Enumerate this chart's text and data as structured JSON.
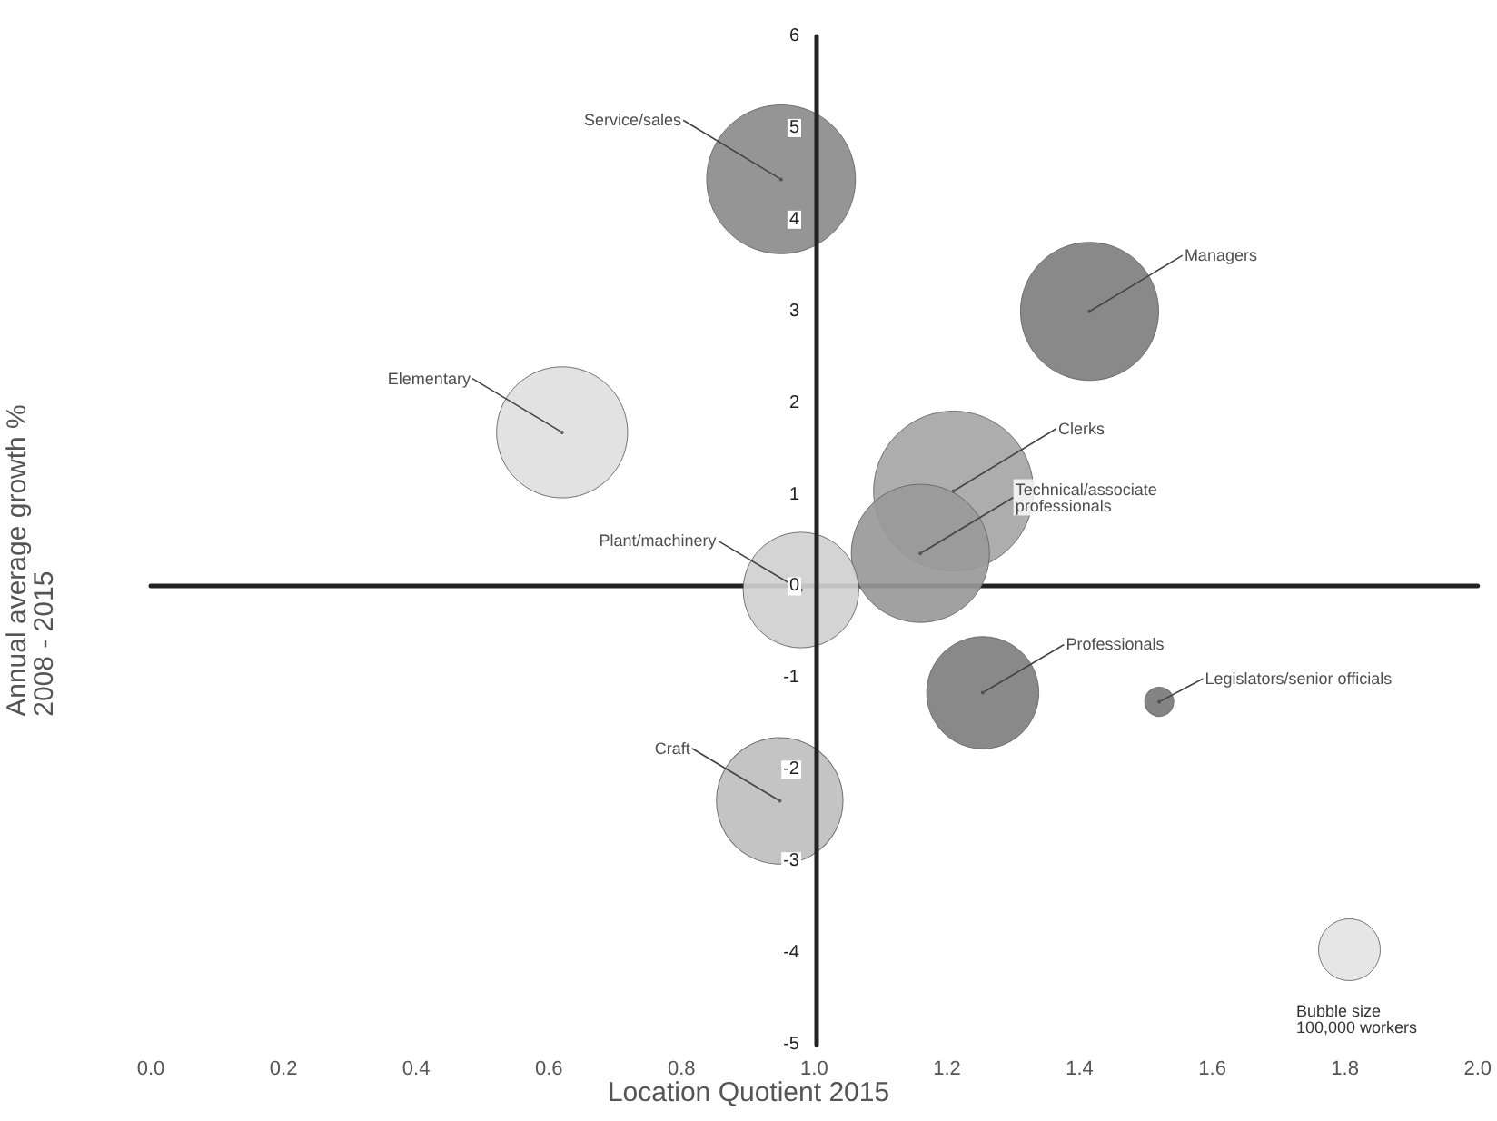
{
  "chart_data": {
    "type": "bubble",
    "xlabel": "Location Quotient 2015",
    "ylabel": "Annual average growth %\n2008 - 2015",
    "x": [
      0.95,
      1.415,
      0.62,
      1.21,
      1.16,
      0.98,
      1.254,
      1.52,
      0.948
    ],
    "values": [
      4.44,
      3.0,
      1.68,
      1.04,
      0.36,
      -0.04,
      -1.16,
      -1.26,
      -2.34
    ],
    "sizes": [
      580000,
      500000,
      450000,
      670000,
      500000,
      350000,
      330000,
      22000,
      420000
    ],
    "colors": [
      "#8c8c8c",
      "#7f7f7f",
      "#e0e0e0",
      "#a6a6a6",
      "#999999",
      "#d0d0d0",
      "#7f7f7f",
      "#7a7a7a",
      "#bfbfbf"
    ],
    "size_legend": [
      {
        "value": 100000,
        "label": "Bubble size\n100,000 workers"
      }
    ],
    "annotations": [
      {
        "text": "Service/sales",
        "x": 0.95,
        "y": 4.44
      },
      {
        "text": "Managers",
        "x": 1.415,
        "y": 3.0
      },
      {
        "text": "Elementary",
        "x": 0.62,
        "y": 1.68
      },
      {
        "text": "Clerks",
        "x": 1.21,
        "y": 1.04
      },
      {
        "text": "Technical/associate\nprofessionals",
        "x": 1.16,
        "y": 0.36
      },
      {
        "text": "Plant/machinery",
        "x": 0.98,
        "y": -0.04
      },
      {
        "text": "Professionals",
        "x": 1.254,
        "y": -1.16
      },
      {
        "text": "Legislators/senior officials",
        "x": 1.52,
        "y": -1.26
      },
      {
        "text": "Craft",
        "x": 0.948,
        "y": -2.34
      }
    ],
    "xlim": [
      0.0,
      2.0
    ],
    "xticks": [
      {
        "value": 0,
        "label": "0.0"
      },
      {
        "value": 0.2,
        "label": "0.2"
      },
      {
        "value": 0.4,
        "label": "0.4"
      },
      {
        "value": 0.6,
        "label": "0.6"
      },
      {
        "value": 0.8,
        "label": "0.8"
      },
      {
        "value": 1,
        "label": "1.0"
      },
      {
        "value": 1.2,
        "label": "1.2"
      },
      {
        "value": 1.4,
        "label": "1.4"
      },
      {
        "value": 1.6,
        "label": "1.6"
      },
      {
        "value": 1.8,
        "label": "1.8"
      },
      {
        "value": 2,
        "label": "2.0"
      }
    ],
    "ylim": [
      -5,
      6
    ],
    "yticks": [
      -5,
      -4,
      -3,
      -2,
      -1,
      0,
      1,
      2,
      3,
      4,
      5,
      6
    ]
  }
}
